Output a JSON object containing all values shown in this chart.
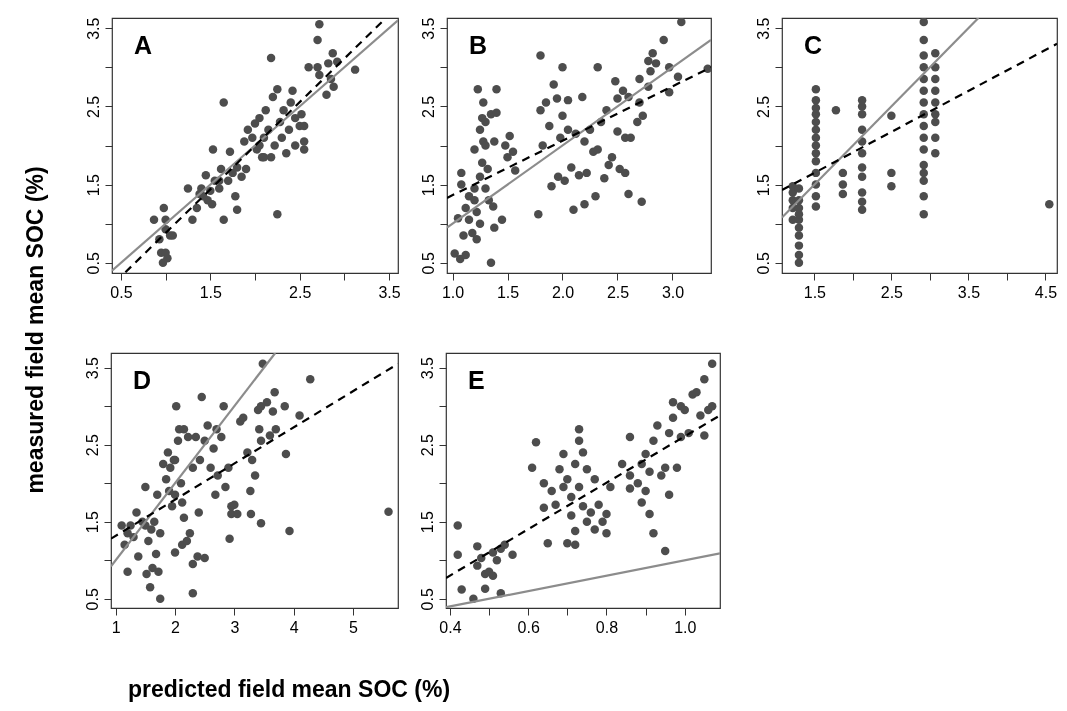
{
  "chart_data": [
    {
      "type": "scatter",
      "title": "A",
      "xlabel": "predicted field mean SOC (%)",
      "ylabel": "measured field mean SOC (%)",
      "xlim": [
        0.4,
        3.6
      ],
      "ylim": [
        0.37,
        3.63
      ],
      "xticks": [
        0.5,
        {
          "value": 1,
          "label": null
        },
        1.5,
        {
          "value": 2,
          "label": null
        },
        2.5,
        {
          "value": 3,
          "label": null
        },
        3.5
      ],
      "yticks": [
        0.5,
        {
          "value": 1,
          "label": null
        },
        1.5,
        {
          "value": 2,
          "label": null
        },
        2.5,
        {
          "value": 3,
          "label": null
        },
        3.5
      ],
      "series": [
        {
          "type": "scatter",
          "marker": "circle",
          "color": "#4d4d4d",
          "x": [
            0.87,
            0.93,
            0.95,
            0.97,
            0.98,
            1.0,
            1.0,
            1.02,
            1.05,
            1.08,
            1.0,
            1.25,
            1.3,
            1.35,
            1.38,
            1.4,
            1.45,
            1.47,
            1.5,
            1.52,
            1.55,
            1.53,
            1.6,
            1.62,
            1.65,
            1.65,
            1.7,
            1.72,
            1.75,
            1.78,
            1.8,
            1.8,
            1.85,
            1.88,
            1.9,
            1.92,
            1.97,
            2.0,
            2.02,
            2.05,
            2.08,
            2.1,
            2.12,
            2.15,
            2.18,
            2.18,
            2.2,
            2.22,
            2.25,
            2.25,
            2.28,
            2.3,
            2.32,
            2.35,
            2.38,
            2.4,
            2.42,
            2.45,
            2.45,
            2.5,
            2.52,
            2.55,
            2.55,
            2.55,
            2.6,
            2.7,
            2.72,
            2.7,
            2.72,
            2.8,
            2.82,
            2.85,
            2.87,
            2.88,
            2.92,
            3.12,
            2.05,
            2.1,
            1.42,
            1.6
          ],
          "values": [
            1.05,
            0.8,
            0.63,
            0.5,
            1.2,
            1.05,
            0.63,
            0.56,
            0.85,
            0.85,
            0.93,
            1.45,
            1.05,
            1.2,
            1.38,
            1.45,
            1.62,
            1.3,
            1.42,
            1.25,
            1.55,
            1.95,
            1.45,
            1.7,
            1.05,
            2.55,
            1.55,
            1.92,
            1.65,
            1.35,
            1.18,
            1.72,
            1.6,
            2.05,
            1.7,
            2.2,
            2.1,
            2.28,
            1.95,
            2.35,
            1.85,
            2.1,
            2.45,
            2.2,
            1.85,
            3.12,
            2.62,
            2.0,
            1.12,
            2.72,
            2.3,
            2.1,
            2.45,
            1.9,
            2.2,
            2.55,
            2.7,
            2.0,
            2.35,
            2.25,
            2.4,
            1.95,
            2.05,
            2.25,
            3.0,
            3.0,
            2.9,
            3.35,
            3.55,
            2.65,
            3.05,
            2.85,
            3.18,
            2.75,
            3.07,
            2.97,
            2.0,
            1.85,
            1.35,
            1.55
          ]
        },
        {
          "type": "line",
          "color": "#8c8c8c",
          "x": [
            0.4,
            3.6
          ],
          "values": [
            0.4,
            3.6
          ]
        },
        {
          "type": "line",
          "color": "#000000",
          "line_style": "dashed",
          "x": [
            0.55,
            3.42
          ],
          "values": [
            0.38,
            3.58
          ]
        }
      ]
    },
    {
      "type": "scatter",
      "title": "B",
      "xlim": [
        0.95,
        3.35
      ],
      "ylim": [
        0.37,
        3.63
      ],
      "xticks": [
        {
          "value": 1,
          "label": "1.0"
        },
        1.5,
        {
          "value": 2,
          "label": "2.0"
        },
        2.5,
        {
          "value": 3,
          "label": "3.0"
        }
      ],
      "yticks": [
        0.5,
        {
          "value": 1,
          "label": null
        },
        1.5,
        {
          "value": 2,
          "label": null
        },
        2.5,
        {
          "value": 3,
          "label": null
        },
        3.5
      ],
      "series": [
        {
          "type": "scatter",
          "marker": "circle",
          "color": "#4d4d4d",
          "x": [
            1.02,
            1.05,
            1.07,
            1.08,
            1.08,
            1.1,
            1.12,
            1.12,
            1.15,
            1.15,
            1.18,
            1.2,
            1.2,
            1.22,
            1.22,
            1.23,
            1.25,
            1.25,
            1.25,
            1.27,
            1.27,
            1.28,
            1.28,
            1.3,
            1.3,
            1.32,
            1.33,
            1.35,
            1.35,
            1.37,
            1.38,
            1.38,
            1.4,
            1.4,
            1.45,
            1.48,
            1.5,
            1.52,
            1.55,
            1.57,
            1.3,
            1.2,
            1.78,
            1.8,
            1.8,
            1.82,
            1.85,
            1.88,
            1.9,
            1.92,
            1.95,
            1.96,
            1.98,
            2.0,
            2.0,
            2.02,
            2.05,
            2.05,
            2.08,
            2.1,
            2.12,
            2.15,
            2.18,
            2.2,
            2.2,
            2.22,
            2.25,
            2.28,
            2.3,
            2.32,
            2.32,
            2.35,
            2.38,
            2.4,
            2.42,
            2.45,
            2.48,
            2.5,
            2.5,
            2.52,
            2.55,
            2.57,
            2.57,
            2.6,
            2.62,
            2.6,
            2.68,
            2.7,
            2.7,
            2.72,
            2.73,
            2.78,
            2.78,
            2.8,
            2.82,
            2.85,
            2.92,
            2.97,
            2.97,
            3.05,
            3.08,
            3.32
          ],
          "values": [
            0.62,
            1.07,
            0.55,
            1.5,
            1.65,
            0.85,
            0.6,
            1.2,
            1.35,
            1.05,
            0.88,
            1.95,
            1.45,
            0.8,
            1.15,
            2.72,
            2.2,
            1.0,
            1.6,
            2.35,
            1.78,
            2.55,
            2.05,
            1.45,
            2.3,
            1.7,
            1.3,
            0.5,
            2.4,
            1.22,
            2.05,
            0.95,
            2.72,
            2.42,
            1.05,
            2.0,
            1.85,
            2.12,
            1.92,
            1.68,
            2.0,
            1.3,
            1.12,
            3.15,
            2.45,
            2.0,
            2.55,
            2.25,
            1.48,
            2.78,
            2.6,
            1.6,
            2.1,
            3.0,
            2.38,
            1.55,
            2.58,
            2.2,
            1.72,
            1.18,
            2.15,
            1.62,
            2.62,
            1.25,
            2.05,
            1.65,
            2.2,
            1.92,
            1.35,
            3.0,
            1.95,
            2.3,
            1.58,
            2.45,
            1.75,
            1.85,
            2.82,
            2.6,
            2.18,
            1.7,
            2.7,
            2.1,
            1.65,
            1.38,
            2.1,
            2.62,
            2.3,
            2.85,
            2.55,
            1.28,
            2.38,
            2.75,
            3.08,
            2.95,
            3.18,
            3.05,
            3.35,
            3.0,
            2.68,
            2.88,
            3.58,
            2.98
          ]
        },
        {
          "type": "line",
          "color": "#8c8c8c",
          "x": [
            0.95,
            3.35
          ],
          "values": [
            0.95,
            3.35
          ]
        },
        {
          "type": "line",
          "color": "#000000",
          "line_style": "dashed",
          "x": [
            0.95,
            3.35
          ],
          "values": [
            1.33,
            3.0
          ]
        }
      ]
    },
    {
      "type": "scatter",
      "title": "C",
      "xlim": [
        1.08,
        4.65
      ],
      "ylim": [
        0.37,
        3.63
      ],
      "xticks": [
        1.5,
        {
          "value": 2,
          "label": null
        },
        2.5,
        {
          "value": 3,
          "label": null
        },
        3.5,
        {
          "value": 4,
          "label": null
        },
        4.5
      ],
      "yticks": [
        0.5,
        {
          "value": 1,
          "label": null
        },
        1.5,
        {
          "value": 2,
          "label": null
        },
        2.5,
        {
          "value": 3,
          "label": null
        },
        3.5
      ],
      "series": [
        {
          "type": "scatter",
          "marker": "circle",
          "color": "#4d4d4d",
          "x": [
            1.22,
            1.22,
            1.22,
            1.22,
            1.22,
            1.3,
            1.3,
            1.3,
            1.3,
            1.3,
            1.3,
            1.3,
            1.3,
            1.3,
            1.3,
            1.52,
            1.52,
            1.52,
            1.52,
            1.52,
            1.52,
            1.52,
            1.52,
            1.52,
            1.52,
            1.52,
            1.52,
            1.52,
            1.52,
            1.78,
            1.87,
            1.87,
            1.87,
            2.12,
            2.12,
            2.12,
            2.12,
            2.12,
            2.12,
            2.12,
            2.12,
            2.12,
            2.12,
            2.12,
            2.5,
            2.5,
            2.5,
            2.92,
            2.92,
            2.92,
            2.92,
            2.92,
            2.92,
            2.92,
            2.92,
            2.92,
            2.92,
            2.92,
            2.92,
            2.92,
            2.92,
            2.92,
            2.92,
            3.07,
            3.07,
            3.07,
            3.07,
            3.07,
            3.07,
            3.07,
            3.07,
            3.07,
            4.55
          ],
          "values": [
            1.05,
            1.2,
            1.3,
            1.4,
            1.48,
            0.5,
            0.6,
            0.72,
            0.85,
            0.95,
            1.05,
            1.12,
            1.2,
            1.3,
            1.45,
            1.22,
            1.35,
            1.5,
            1.65,
            1.8,
            1.9,
            2.0,
            2.1,
            2.2,
            2.3,
            2.4,
            2.48,
            2.58,
            2.72,
            2.45,
            1.38,
            1.5,
            1.65,
            1.18,
            1.28,
            1.4,
            1.6,
            1.72,
            1.9,
            2.05,
            2.2,
            2.4,
            2.5,
            2.58,
            1.48,
            1.65,
            2.38,
            1.12,
            1.35,
            1.55,
            1.65,
            1.75,
            1.95,
            2.1,
            2.25,
            2.4,
            2.55,
            2.7,
            2.85,
            3.0,
            3.15,
            3.35,
            3.58,
            1.9,
            2.1,
            2.3,
            2.4,
            2.55,
            2.7,
            2.85,
            3.0,
            3.18,
            1.25
          ]
        },
        {
          "type": "line",
          "color": "#8c8c8c",
          "x": [
            1.08,
            3.63
          ],
          "values": [
            1.08,
            3.63
          ]
        },
        {
          "type": "line",
          "color": "#000000",
          "line_style": "dashed",
          "x": [
            1.08,
            4.65
          ],
          "values": [
            1.43,
            3.3
          ]
        }
      ]
    },
    {
      "type": "scatter",
      "title": "D",
      "xlim": [
        0.92,
        5.76
      ],
      "ylim": [
        0.38,
        3.69
      ],
      "xticks": [
        1,
        2,
        3,
        4,
        5
      ],
      "yticks": [
        0.5,
        {
          "value": 1,
          "label": null
        },
        1.5,
        {
          "value": 2,
          "label": null
        },
        2.5,
        {
          "value": 3,
          "label": null
        },
        3.5
      ],
      "series": [
        {
          "type": "scatter",
          "marker": "circle",
          "color": "#4d4d4d",
          "x": [
            1.1,
            1.15,
            1.2,
            1.2,
            1.25,
            1.3,
            1.35,
            1.38,
            1.45,
            1.5,
            1.5,
            1.52,
            1.55,
            1.58,
            1.6,
            1.62,
            1.65,
            1.68,
            1.7,
            1.72,
            1.75,
            1.75,
            1.8,
            1.85,
            1.88,
            1.9,
            1.92,
            1.95,
            1.98,
            2.0,
            2.0,
            2.02,
            2.05,
            2.07,
            2.1,
            2.12,
            2.12,
            2.15,
            2.15,
            2.2,
            2.22,
            2.25,
            2.3,
            2.3,
            2.3,
            2.35,
            2.38,
            2.4,
            2.42,
            2.45,
            2.5,
            2.5,
            2.55,
            2.6,
            2.65,
            2.68,
            2.7,
            2.72,
            2.78,
            2.82,
            2.85,
            2.9,
            2.92,
            2.95,
            2.95,
            3.0,
            3.05,
            3.1,
            3.15,
            3.22,
            3.27,
            3.28,
            3.3,
            3.35,
            3.4,
            3.42,
            3.45,
            3.45,
            3.48,
            3.55,
            3.6,
            3.65,
            3.68,
            3.7,
            3.85,
            3.87,
            3.93,
            4.1,
            4.28,
            5.6,
            3.45,
            2.0
          ],
          "values": [
            1.45,
            1.2,
            1.35,
            0.85,
            1.45,
            1.3,
            1.62,
            1.05,
            1.5,
            1.95,
            1.45,
            0.82,
            1.25,
            0.65,
            1.4,
            0.9,
            1.5,
            1.08,
            1.85,
            0.85,
            0.5,
            1.35,
            2.25,
            2.05,
            2.4,
            1.9,
            2.2,
            1.7,
            2.3,
            1.1,
            1.85,
            3.0,
            2.55,
            2.7,
            2.0,
            1.75,
            1.2,
            1.55,
            2.7,
            1.25,
            2.6,
            1.35,
            0.95,
            0.57,
            2.2,
            2.6,
            1.05,
            1.62,
            2.3,
            3.12,
            1.03,
            2.55,
            2.75,
            2.2,
            2.45,
            1.85,
            2.7,
            2.1,
            2.6,
            3.0,
            1.95,
            2.2,
            1.28,
            1.6,
            1.7,
            1.72,
            1.6,
            2.8,
            2.85,
            2.4,
            1.9,
            1.6,
            2.3,
            2.1,
            2.95,
            2.7,
            1.48,
            3.0,
            3.55,
            3.05,
            2.62,
            2.93,
            3.18,
            2.7,
            3.0,
            2.38,
            1.38,
            2.88,
            3.35,
            1.63,
            2.55,
            2.3
          ]
        },
        {
          "type": "line",
          "color": "#8c8c8c",
          "x": [
            0.92,
            3.69
          ],
          "values": [
            0.92,
            3.69
          ]
        },
        {
          "type": "line",
          "color": "#000000",
          "line_style": "dashed",
          "x": [
            0.92,
            5.76
          ],
          "values": [
            1.28,
            3.55
          ]
        }
      ]
    },
    {
      "type": "scatter",
      "title": "E",
      "xlim": [
        0.39,
        1.09
      ],
      "ylim": [
        0.38,
        3.69
      ],
      "xticks": [
        0.4,
        {
          "value": 0.5,
          "label": null
        },
        0.6,
        {
          "value": 0.7,
          "label": null
        },
        0.8,
        {
          "value": 0.9,
          "label": null
        },
        {
          "value": 1,
          "label": "1.0"
        }
      ],
      "yticks": [
        0.5,
        {
          "value": 1,
          "label": null
        },
        1.5,
        {
          "value": 2,
          "label": null
        },
        2.5,
        {
          "value": 3,
          "label": null
        },
        3.5
      ],
      "series": [
        {
          "type": "scatter",
          "marker": "circle",
          "color": "#4d4d4d",
          "x": [
            0.42,
            0.42,
            0.43,
            0.46,
            0.47,
            0.47,
            0.48,
            0.49,
            0.49,
            0.5,
            0.51,
            0.51,
            0.52,
            0.53,
            0.53,
            0.54,
            0.56,
            0.61,
            0.62,
            0.64,
            0.64,
            0.65,
            0.66,
            0.67,
            0.68,
            0.69,
            0.69,
            0.7,
            0.7,
            0.71,
            0.71,
            0.72,
            0.72,
            0.72,
            0.73,
            0.73,
            0.73,
            0.74,
            0.74,
            0.75,
            0.75,
            0.76,
            0.77,
            0.77,
            0.78,
            0.79,
            0.8,
            0.8,
            0.81,
            0.84,
            0.86,
            0.86,
            0.86,
            0.88,
            0.89,
            0.89,
            0.9,
            0.9,
            0.91,
            0.91,
            0.92,
            0.92,
            0.93,
            0.94,
            0.95,
            0.95,
            0.96,
            0.96,
            0.97,
            0.97,
            0.98,
            0.99,
            0.99,
            1.0,
            1.01,
            1.02,
            1.03,
            1.04,
            1.05,
            1.05,
            1.06,
            1.07,
            1.07
          ],
          "values": [
            1.45,
            1.07,
            0.62,
            0.5,
            1.18,
            0.93,
            1.03,
            0.82,
            0.63,
            0.85,
            1.1,
            0.8,
            1.0,
            0.57,
            1.15,
            1.2,
            1.07,
            2.2,
            2.53,
            2.0,
            1.68,
            1.22,
            1.9,
            1.72,
            2.18,
            2.38,
            1.95,
            1.22,
            2.05,
            1.58,
            1.82,
            2.25,
            1.38,
            1.2,
            2.7,
            2.55,
            1.95,
            1.7,
            2.4,
            2.18,
            1.5,
            1.62,
            2.05,
            1.4,
            1.72,
            1.5,
            1.35,
            1.6,
            1.95,
            2.25,
            2.6,
            2.1,
            1.93,
            2.0,
            1.75,
            2.25,
            1.9,
            2.38,
            2.15,
            1.6,
            1.35,
            2.55,
            2.75,
            2.1,
            1.12,
            2.2,
            2.65,
            1.85,
            2.85,
            3.05,
            2.2,
            2.6,
            3.0,
            2.95,
            2.65,
            3.15,
            3.18,
            2.88,
            2.62,
            3.35,
            2.95,
            3.0,
            3.55
          ]
        },
        {
          "type": "line",
          "color": "#8c8c8c",
          "x": [
            0.39,
            1.09
          ],
          "values": [
            0.39,
            1.09
          ]
        },
        {
          "type": "line",
          "color": "#000000",
          "line_style": "dashed",
          "x": [
            0.39,
            1.09
          ],
          "values": [
            0.77,
            2.88
          ]
        }
      ]
    }
  ]
}
